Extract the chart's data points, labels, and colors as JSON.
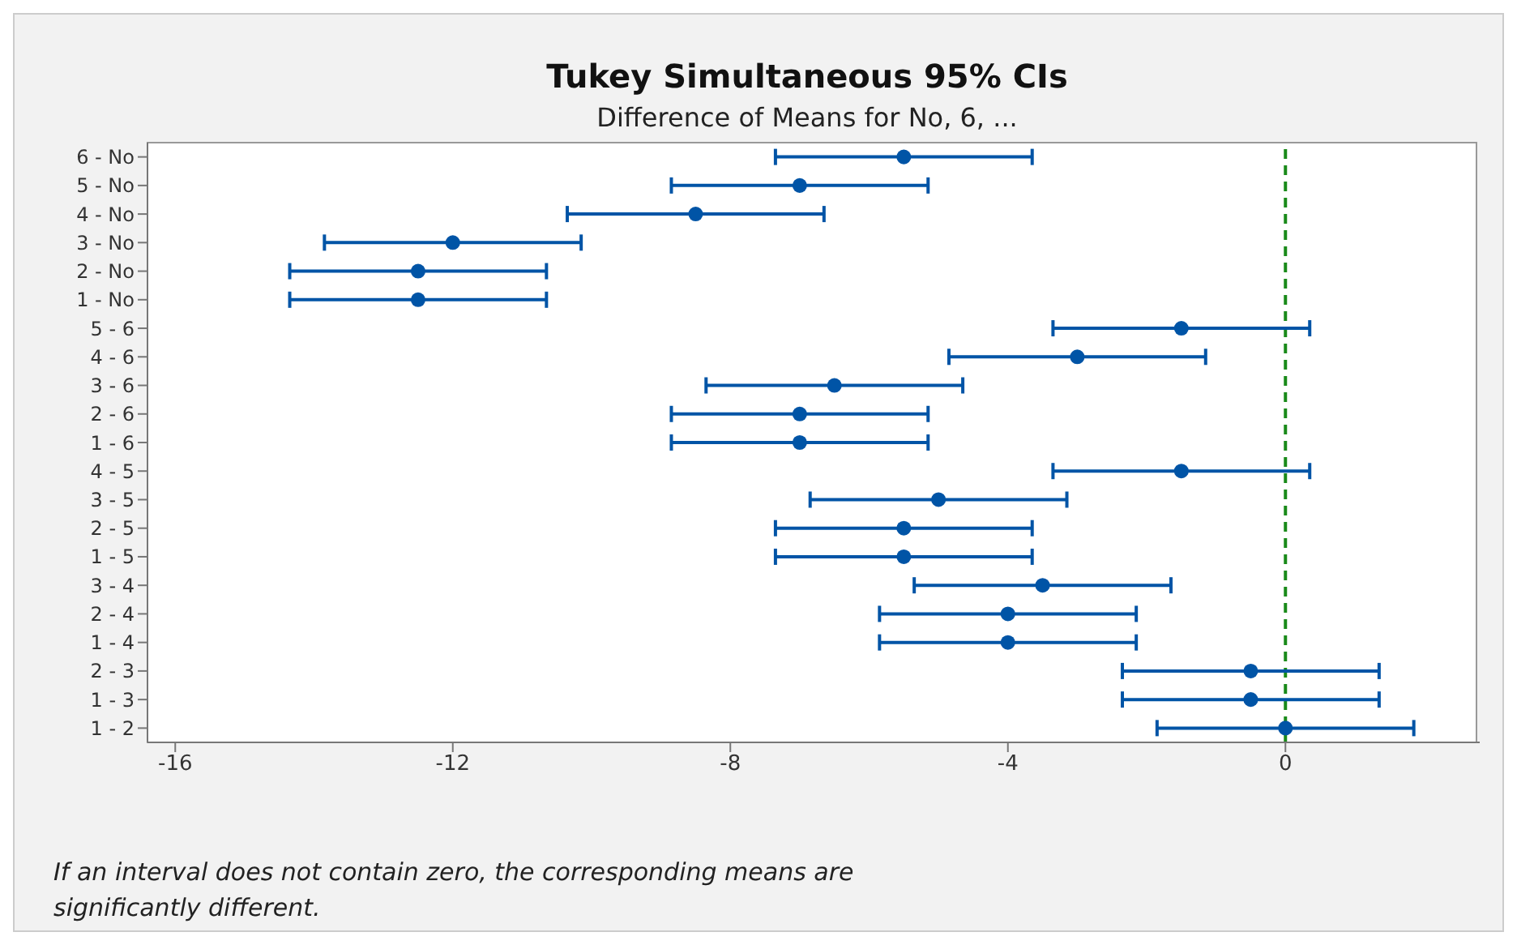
{
  "chart_data": {
    "type": "scatter",
    "orientation": "horizontal",
    "title": "Tukey Simultaneous 95% CIs",
    "subtitle": "Difference of Means for No, 6, ...",
    "categories": [
      "6 - No",
      "5 - No",
      "4 - No",
      "3 - No",
      "2 - No",
      "1 - No",
      "5 - 6",
      "4 - 6",
      "3 - 6",
      "2 - 6",
      "1 - 6",
      "4 - 5",
      "3 - 5",
      "2 - 5",
      "1 - 5",
      "3 - 4",
      "2 - 4",
      "1 - 4",
      "2 - 3",
      "1 - 3",
      "1 - 2"
    ],
    "values": [
      -5.5,
      -7,
      -8.5,
      -12,
      -12.5,
      -12.5,
      -1.5,
      -3,
      -6.5,
      -7,
      -7,
      -1.5,
      -5,
      -5.5,
      -5.5,
      -3.5,
      -4,
      -4,
      -0.5,
      -0.5,
      0
    ],
    "errors": [
      1.85,
      1.85,
      1.85,
      1.85,
      1.85,
      1.85,
      1.85,
      1.85,
      1.85,
      1.85,
      1.85,
      1.85,
      1.85,
      1.85,
      1.85,
      1.85,
      1.85,
      1.85,
      1.85,
      1.85,
      1.85
    ],
    "color": "#0054a6",
    "marker": "circle",
    "grid": false,
    "xlim": [
      -16.4,
      2.8
    ],
    "xticks": [
      -16,
      -12,
      -8,
      -4,
      0
    ],
    "ref_lines": [
      {
        "axis": "x",
        "value": 0,
        "color": "#1a8a1a",
        "line_style": "dashed"
      }
    ],
    "annotations": [
      "If an interval does not contain zero, the corresponding means are significantly different."
    ]
  }
}
